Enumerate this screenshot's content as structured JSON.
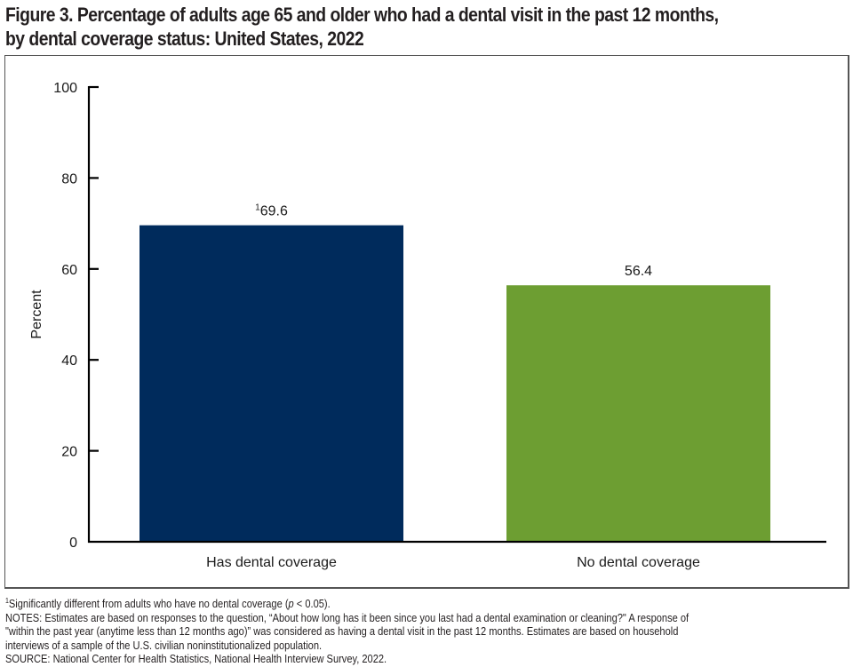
{
  "title_line1": "Figure 3. Percentage of adults age 65 and older who had a dental visit in the past 12 months,",
  "title_line2": "by dental coverage status: United States, 2022",
  "colors": {
    "has_coverage": "#002b5c",
    "no_coverage": "#6d9e32",
    "axis": "#000000"
  },
  "chart_data": {
    "type": "bar",
    "title": "Figure 3. Percentage of adults age 65 and older who had a dental visit in the past 12 months, by dental coverage status: United States, 2022",
    "xlabel": "",
    "ylabel": "Percent",
    "ylim": [
      0,
      100
    ],
    "yticks": [
      "0",
      "20",
      "40",
      "60",
      "80",
      "100"
    ],
    "grid": false,
    "categories": [
      "Has dental coverage",
      "No dental coverage"
    ],
    "values": [
      69.6,
      56.4
    ],
    "data_labels": [
      "69.6",
      "56.4"
    ],
    "label_superscripts": [
      "1",
      ""
    ]
  },
  "footnotes": {
    "sig_marker": "1",
    "sig_text": "Significantly different from adults who have no dental coverage (",
    "sig_p": "p",
    "sig_tail": " < 0.05).",
    "notes_line1": "NOTES: Estimates are based on responses to the question, “About how long has it been since you last had a dental examination or cleaning?\" A response of",
    "notes_line2": "\"within the past year (anytime less than 12 months ago)” was considered as having a dental visit in the past 12 months. Estimates are based on household",
    "notes_line3": "interviews of a sample of the U.S. civilian noninstitutionalized population.",
    "source": "SOURCE: National Center for Health Statistics, National Health Interview Survey, 2022."
  }
}
